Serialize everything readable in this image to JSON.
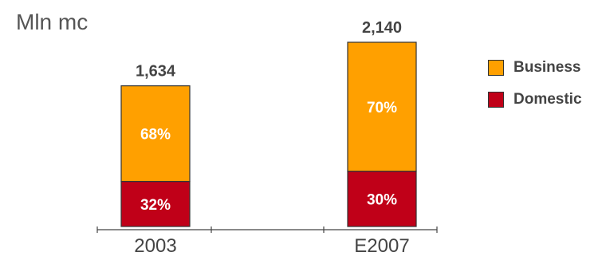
{
  "chart_data": {
    "type": "bar",
    "stacked": true,
    "unit_label": "Mln mc",
    "categories": [
      "2003",
      "E2007"
    ],
    "totals": [
      "1,634",
      "2,140"
    ],
    "total_values": [
      1634,
      2140
    ],
    "series": [
      {
        "name": "Domestic",
        "color": "#c00018",
        "percent_labels": [
          "32%",
          "30%"
        ],
        "values": [
          523,
          642
        ]
      },
      {
        "name": "Business",
        "color": "#ffa000",
        "percent_labels": [
          "68%",
          "70%"
        ],
        "values": [
          1111,
          1498
        ]
      }
    ],
    "legend": {
      "position": "right",
      "items": [
        {
          "label": "Business",
          "color": "#ffa000"
        },
        {
          "label": "Domestic",
          "color": "#c00018"
        }
      ]
    },
    "ylim": [
      0,
      2140
    ],
    "grid": false
  }
}
